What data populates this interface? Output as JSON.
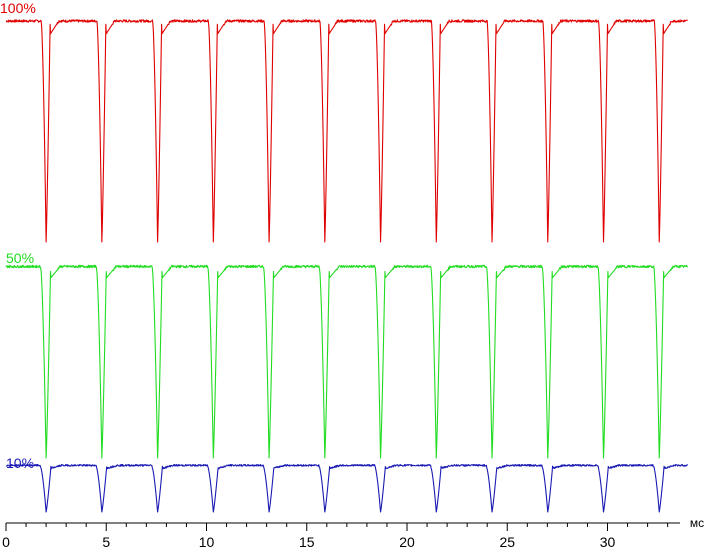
{
  "chart_data": {
    "type": "line",
    "xlabel": "мс",
    "xlim": [
      0,
      34
    ],
    "ylabel": "",
    "grid": false,
    "x_ticks": [
      {
        "value": 0,
        "label": "0"
      },
      {
        "value": 5,
        "label": "5"
      },
      {
        "value": 10,
        "label": "10"
      },
      {
        "value": 15,
        "label": "15"
      },
      {
        "value": 20,
        "label": "20"
      },
      {
        "value": 25,
        "label": "25"
      },
      {
        "value": 30,
        "label": "30"
      }
    ],
    "minor_tick_step": 1,
    "period_ms": 2.78,
    "first_dip_ms": 2.0,
    "pulse_count": 12,
    "trace_end_ms": 34,
    "series": [
      {
        "name": "100%",
        "color": "#e00000",
        "high_level": 100,
        "dip_level": 55,
        "dip_width_ms": 0.45
      },
      {
        "name": "50%",
        "color": "#22dd22",
        "high_level": 50,
        "dip_level": 11,
        "dip_width_ms": 0.5
      },
      {
        "name": "10%",
        "color": "#1a1ab4",
        "high_level": 9.5,
        "dip_level": 0,
        "dip_width_ms": 0.55
      }
    ]
  }
}
